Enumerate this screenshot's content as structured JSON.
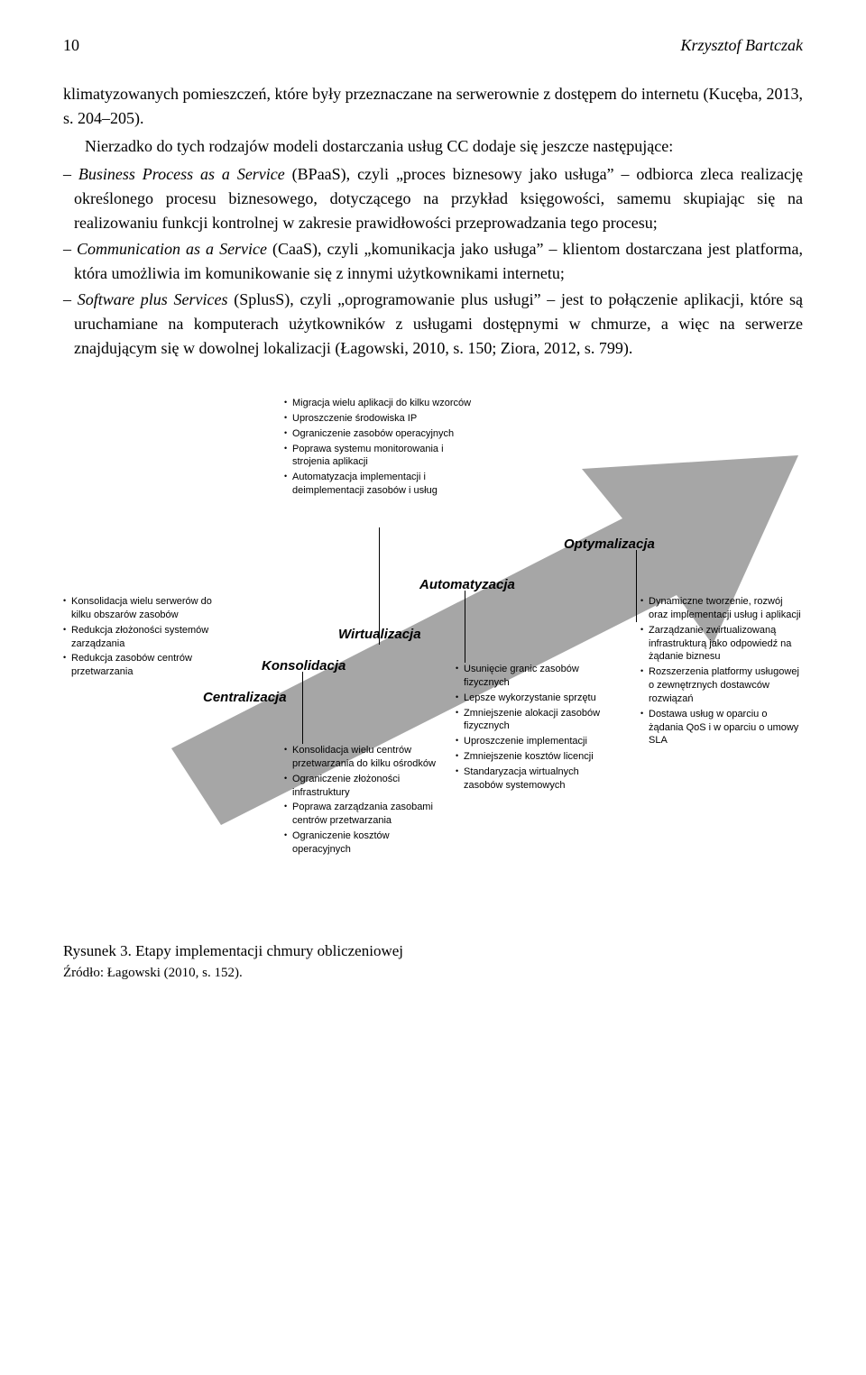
{
  "header": {
    "page_number": "10",
    "author": "Krzysztof Bartczak"
  },
  "para1": "klimatyzowanych pomieszczeń, które były przeznaczane na serwerownie z dostępem do internetu (Kucęba, 2013, s. 204–205).",
  "para2": "Nierzadko do tych rodzajów modeli dostarczania usług CC dodaje się jeszcze następujące:",
  "list": {
    "item1_prefix": "Business Process as a Service",
    "item1_rest": " (BPaaS), czyli „proces biznesowy jako usługa” – odbiorca zleca realizację określonego procesu biznesowego, dotyczącego na przykład księgowości, samemu skupiając się na realizowaniu funkcji kontrolnej w zakresie prawidłowości przeprowadzania tego procesu;",
    "item2_prefix": "Communication as a Service",
    "item2_rest": " (CaaS), czyli „komunikacja jako usługa” – klientom dostarczana jest platforma, która umożliwia im komunikowanie się z innymi użytkownikami internetu;",
    "item3_prefix": "Software plus Services",
    "item3_rest": " (SplusS), czyli „oprogramowanie plus usługi” – jest to połączenie aplikacji, które są uruchamiane na komputerach użytkowników z usługami dostępnymi w chmurze, a więc na serwerze znajdującym się w dowolnej lokalizacji (Łagowski, 2010, s. 150; Ziora, 2012, s. 799)."
  },
  "diagram": {
    "arrow_fill": "#a6a6a6",
    "stage_labels": {
      "centralizacja": "Centralizacja",
      "konsolidacja": "Konsolidacja",
      "wirtualizacja": "Wirtualizacja",
      "automatyzacja": "Automatyzacja",
      "optymalizacja": "Optymalizacja"
    },
    "box_left": [
      "Konsolidacja wielu serwerów do kilku obszarów zasobów",
      "Redukcja złożoności systemów zarządzania",
      "Redukcja zasobów centrów przetwarzania"
    ],
    "box_center_top": [
      "Migracja wielu aplikacji do kilku wzorców",
      "Uproszczenie środowiska IP",
      "Ograniczenie zasobów operacyjnych",
      "Poprawa systemu monitorowania i strojenia aplikacji",
      "Automatyzacja implementacji i deimplementacji zasobów i usług"
    ],
    "box_center_bottom": [
      "Konsolidacja wielu centrów przetwarzania do kilku ośrodków",
      "Ograniczenie złożoności infrastruktury",
      "Poprawa zarządzania zasobami centrów przetwarzania",
      "Ograniczenie kosztów operacyjnych"
    ],
    "box_auto": [
      "Usunięcie granic zasobów fizycznych",
      "Lepsze wykorzystanie sprzętu",
      "Zmniejszenie alokacji zasobów fizycznych",
      "Uproszczenie implementacji",
      "Zmniejszenie kosztów licencji",
      "Standaryzacja wirtualnych zasobów systemowych"
    ],
    "box_right": [
      "Dynamiczne tworzenie, rozwój oraz implementacji usług i aplikacji",
      "Zarządzanie zwirtualizowaną infrastrukturą jako odpowiedź na żądanie biznesu",
      "Rozszerzenia platformy usługowej o zewnętrznych dostawców rozwiązań",
      "Dostawa usług w oparciu o żądania QoS i w oparciu o umowy SLA"
    ]
  },
  "caption": "Rysunek 3. Etapy implementacji chmury obliczeniowej",
  "source": "Źródło: Łagowski (2010, s. 152)."
}
